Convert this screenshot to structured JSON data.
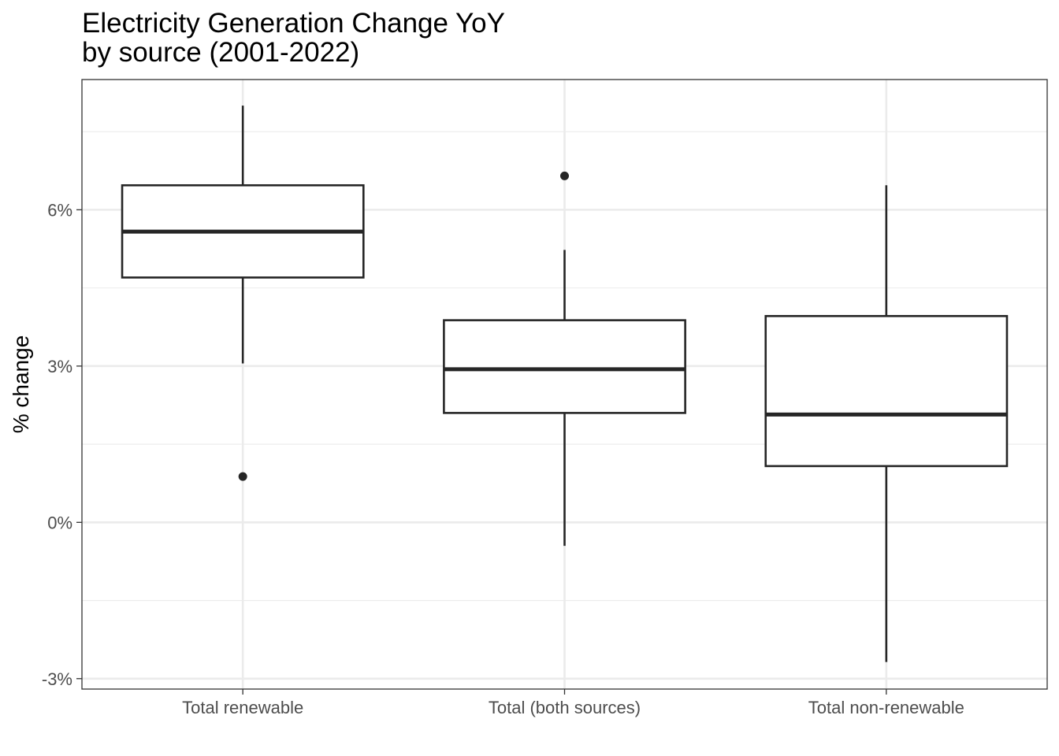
{
  "chart_data": {
    "type": "boxplot",
    "title": "Electricity Generation Change YoY",
    "subtitle": "by source (2001-2022)",
    "xlabel": "",
    "ylabel": "% change",
    "ylim": [
      -3.2,
      8.5
    ],
    "yticks": [
      -3,
      0,
      3,
      6
    ],
    "ytick_labels": [
      "-3%",
      "0%",
      "3%",
      "6%"
    ],
    "categories": [
      "Total renewable",
      "Total (both sources)",
      "Total non-renewable"
    ],
    "boxes": [
      {
        "category": "Total renewable",
        "whisker_low": 3.05,
        "q1": 4.7,
        "median": 5.58,
        "q3": 6.47,
        "whisker_high": 8.0,
        "outliers": [
          0.88
        ]
      },
      {
        "category": "Total (both sources)",
        "whisker_low": -0.45,
        "q1": 2.1,
        "median": 2.94,
        "q3": 3.88,
        "whisker_high": 5.23,
        "outliers": [
          6.65
        ]
      },
      {
        "category": "Total non-renewable",
        "whisker_low": -2.68,
        "q1": 1.08,
        "median": 2.07,
        "q3": 3.96,
        "whisker_high": 6.47,
        "outliers": []
      }
    ],
    "grid": true,
    "theme": "bw"
  }
}
